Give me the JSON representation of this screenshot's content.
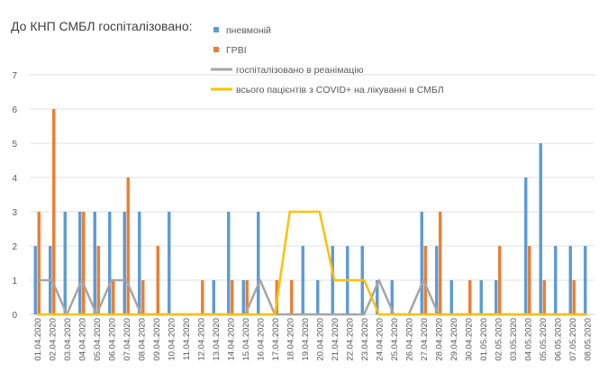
{
  "chart_data": {
    "type": "bar",
    "title": "До КНП СМБЛ госпіталізовано:",
    "xlabel": "",
    "ylabel": "",
    "ylim": [
      0,
      7
    ],
    "yticks": [
      0,
      1,
      2,
      3,
      4,
      5,
      6,
      7
    ],
    "grid": true,
    "legend_position": "top",
    "categories": [
      "01.04.2020",
      "02.04.2020",
      "03.04.2020",
      "04.04.2020",
      "05.04.2020",
      "06.04.2020",
      "07.04.2020",
      "08.04.2020",
      "09.04.2020",
      "10.04.2020",
      "11.04.2020",
      "12.04.2020",
      "13.04.2020",
      "14.04.2020",
      "15.04.2020",
      "16.04.2020",
      "17.04.2020",
      "18.04.2020",
      "19.04.2020",
      "20.04.2020",
      "21.04.2020",
      "22.04.2020",
      "23.04.2020",
      "24.04.2020",
      "25.04.2020",
      "26.04.2020",
      "27.04.2020",
      "28.04.2020",
      "29.04.2020",
      "30.04.2020",
      "01.05.2020",
      "02.05.2020",
      "03.05.2020",
      "04.05.2020",
      "05.05.2020",
      "06.05.2020",
      "07.05.2020",
      "08.05.2020"
    ],
    "series": [
      {
        "name": "пневмоній",
        "kind": "bar",
        "color": "#5b9bd5",
        "values": [
          2,
          2,
          3,
          3,
          3,
          3,
          3,
          3,
          0,
          3,
          0,
          0,
          1,
          3,
          1,
          3,
          0,
          0,
          2,
          1,
          2,
          2,
          2,
          1,
          1,
          0,
          3,
          2,
          1,
          0,
          1,
          1,
          0,
          4,
          5,
          2,
          2,
          2
        ]
      },
      {
        "name": "ГРВІ",
        "kind": "bar",
        "color": "#ed7d31",
        "values": [
          3,
          6,
          0,
          3,
          2,
          1,
          4,
          1,
          2,
          0,
          0,
          1,
          0,
          1,
          1,
          0,
          1,
          1,
          0,
          0,
          0,
          0,
          0,
          0,
          0,
          0,
          2,
          3,
          0,
          1,
          0,
          2,
          0,
          2,
          1,
          0,
          1,
          0
        ]
      },
      {
        "name": "госпіталізовано в реанімацію",
        "kind": "line",
        "color": "#a5a5a5",
        "values": [
          1,
          1,
          0,
          1,
          0,
          1,
          1,
          0,
          0,
          0,
          0,
          0,
          0,
          0,
          0,
          1,
          0,
          0,
          0,
          0,
          0,
          0,
          0,
          1,
          0,
          0,
          1,
          0,
          0,
          0,
          0,
          0,
          0,
          0,
          0,
          0,
          0,
          0
        ]
      },
      {
        "name": "всього пацієнтів з COVID+ на лікуванні в СМБЛ",
        "kind": "line",
        "color": "#ffc000",
        "values": [
          0,
          0,
          0,
          0,
          0,
          0,
          0,
          0,
          0,
          0,
          0,
          0,
          0,
          0,
          0,
          0,
          0,
          3,
          3,
          3,
          1,
          1,
          1,
          0,
          0,
          0,
          0,
          0,
          0,
          0,
          0,
          0,
          0,
          0,
          0,
          0,
          0,
          0
        ]
      }
    ]
  }
}
